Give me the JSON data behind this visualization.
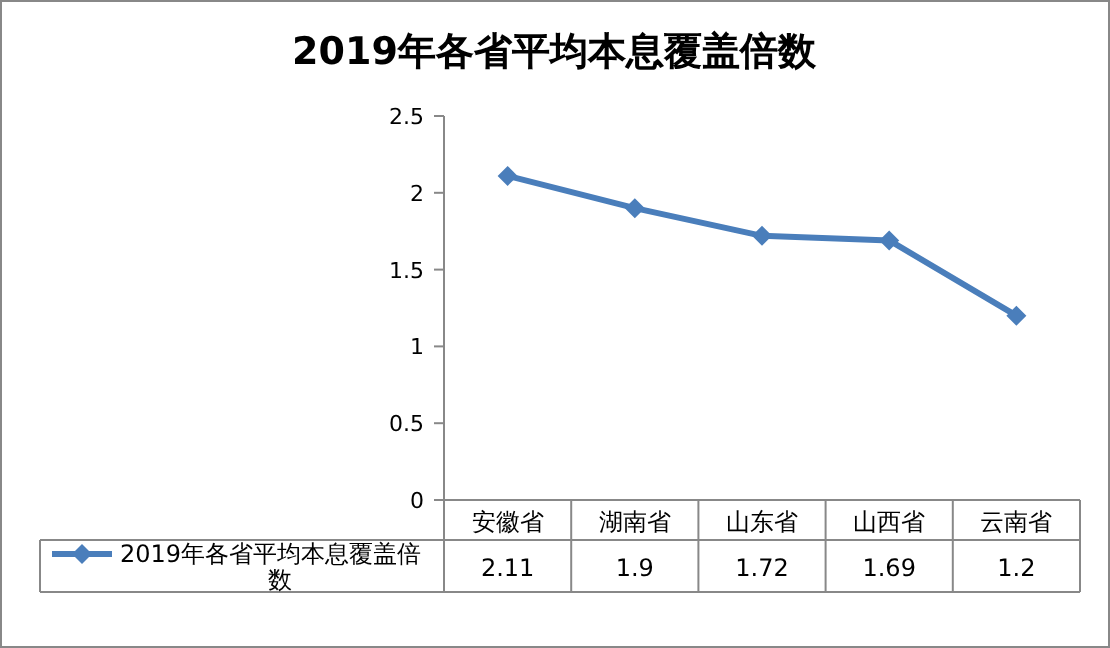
{
  "chart_data": {
    "type": "line",
    "title": "2019年各省平均本息覆盖倍数",
    "categories": [
      "安徽省",
      "湖南省",
      "山东省",
      "山西省",
      "云南省"
    ],
    "series": [
      {
        "name": "2019年各省平均本息覆盖倍数",
        "color": "#4a7ebb",
        "values": [
          2.11,
          1.9,
          1.72,
          1.69,
          1.2
        ]
      }
    ],
    "ylim": [
      0,
      2.5
    ],
    "yticks": [
      0,
      0.5,
      1,
      1.5,
      2,
      2.5
    ],
    "data_labels": true,
    "legend": "bottom",
    "marker": "diamond"
  }
}
